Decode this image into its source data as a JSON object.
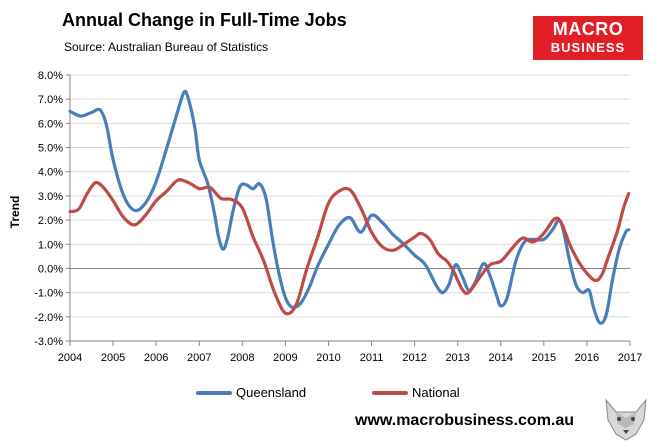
{
  "header": {
    "title": "Annual Change in Full-Time Jobs",
    "source": "Source: Australian Bureau of Statistics"
  },
  "logo": {
    "line1": "MACRO",
    "line2": "BUSINESS"
  },
  "footer": {
    "url": "www.macrobusiness.com.au"
  },
  "colors": {
    "queensland": "#4a7ebb",
    "national": "#be4b48",
    "brand": "#e21f26"
  },
  "chart_data": {
    "type": "line",
    "title": "Annual Change in Full-Time Jobs",
    "xlabel": "",
    "ylabel": "Trend",
    "xlim": [
      2004,
      2017
    ],
    "ylim": [
      -3.0,
      8.0
    ],
    "x_ticks": [
      2004,
      2005,
      2006,
      2007,
      2008,
      2009,
      2010,
      2011,
      2012,
      2013,
      2014,
      2015,
      2016,
      2017
    ],
    "x_tick_labels": [
      "2004",
      "2005",
      "2006",
      "2007",
      "2008",
      "2009",
      "2010",
      "2011",
      "2012",
      "2013",
      "2014",
      "2015",
      "2016",
      "2017"
    ],
    "y_ticks": [
      8.0,
      7.0,
      6.0,
      5.0,
      4.0,
      3.0,
      2.0,
      1.0,
      0.0,
      -1.0,
      -2.0,
      -3.0
    ],
    "y_tick_labels": [
      "8.0%",
      "7.0%",
      "6.0%",
      "5.0%",
      "4.0%",
      "3.0%",
      "2.0%",
      "1.0%",
      "0.0%",
      "-1.0%",
      "-2.0%",
      "-3.0%"
    ],
    "grid": "horizontal",
    "legend_position": "bottom",
    "series": [
      {
        "name": "Queensland",
        "color": "#4a7ebb",
        "points": [
          [
            2004.0,
            6.5
          ],
          [
            2004.25,
            6.3
          ],
          [
            2004.5,
            6.45
          ],
          [
            2004.7,
            6.55
          ],
          [
            2004.85,
            5.9
          ],
          [
            2005.0,
            4.5
          ],
          [
            2005.25,
            3.0
          ],
          [
            2005.5,
            2.4
          ],
          [
            2005.75,
            2.7
          ],
          [
            2006.0,
            3.6
          ],
          [
            2006.25,
            5.0
          ],
          [
            2006.5,
            6.5
          ],
          [
            2006.65,
            7.3
          ],
          [
            2006.75,
            7.0
          ],
          [
            2006.9,
            5.8
          ],
          [
            2007.0,
            4.5
          ],
          [
            2007.2,
            3.5
          ],
          [
            2007.35,
            2.3
          ],
          [
            2007.45,
            1.3
          ],
          [
            2007.55,
            0.8
          ],
          [
            2007.65,
            1.2
          ],
          [
            2007.8,
            2.5
          ],
          [
            2007.95,
            3.4
          ],
          [
            2008.1,
            3.45
          ],
          [
            2008.25,
            3.3
          ],
          [
            2008.4,
            3.5
          ],
          [
            2008.55,
            2.9
          ],
          [
            2008.7,
            1.2
          ],
          [
            2008.85,
            -0.2
          ],
          [
            2009.0,
            -1.2
          ],
          [
            2009.15,
            -1.6
          ],
          [
            2009.35,
            -1.45
          ],
          [
            2009.55,
            -0.8
          ],
          [
            2009.75,
            0.1
          ],
          [
            2010.0,
            1.0
          ],
          [
            2010.25,
            1.8
          ],
          [
            2010.5,
            2.1
          ],
          [
            2010.75,
            1.5
          ],
          [
            2011.0,
            2.2
          ],
          [
            2011.25,
            1.9
          ],
          [
            2011.5,
            1.4
          ],
          [
            2011.75,
            1.0
          ],
          [
            2012.0,
            0.55
          ],
          [
            2012.25,
            0.15
          ],
          [
            2012.5,
            -0.7
          ],
          [
            2012.65,
            -1.0
          ],
          [
            2012.8,
            -0.65
          ],
          [
            2012.95,
            0.15
          ],
          [
            2013.1,
            -0.3
          ],
          [
            2013.25,
            -0.9
          ],
          [
            2013.4,
            -0.6
          ],
          [
            2013.6,
            0.2
          ],
          [
            2013.75,
            -0.3
          ],
          [
            2013.9,
            -1.1
          ],
          [
            2014.0,
            -1.55
          ],
          [
            2014.15,
            -1.2
          ],
          [
            2014.35,
            0.3
          ],
          [
            2014.55,
            1.1
          ],
          [
            2014.75,
            1.2
          ],
          [
            2015.0,
            1.2
          ],
          [
            2015.2,
            1.6
          ],
          [
            2015.35,
            2.0
          ],
          [
            2015.45,
            1.6
          ],
          [
            2015.6,
            0.3
          ],
          [
            2015.75,
            -0.7
          ],
          [
            2015.9,
            -1.0
          ],
          [
            2016.05,
            -0.9
          ],
          [
            2016.15,
            -1.6
          ],
          [
            2016.3,
            -2.25
          ],
          [
            2016.45,
            -1.9
          ],
          [
            2016.6,
            -0.4
          ],
          [
            2016.75,
            0.8
          ],
          [
            2016.9,
            1.5
          ],
          [
            2016.97,
            1.6
          ]
        ]
      },
      {
        "name": "National",
        "color": "#be4b48",
        "points": [
          [
            2004.0,
            2.35
          ],
          [
            2004.2,
            2.45
          ],
          [
            2004.4,
            3.1
          ],
          [
            2004.6,
            3.55
          ],
          [
            2004.8,
            3.3
          ],
          [
            2005.0,
            2.8
          ],
          [
            2005.25,
            2.1
          ],
          [
            2005.5,
            1.8
          ],
          [
            2005.75,
            2.2
          ],
          [
            2006.0,
            2.8
          ],
          [
            2006.25,
            3.2
          ],
          [
            2006.5,
            3.65
          ],
          [
            2006.75,
            3.55
          ],
          [
            2007.0,
            3.3
          ],
          [
            2007.25,
            3.35
          ],
          [
            2007.5,
            2.9
          ],
          [
            2007.75,
            2.85
          ],
          [
            2008.0,
            2.5
          ],
          [
            2008.25,
            1.3
          ],
          [
            2008.5,
            0.3
          ],
          [
            2008.75,
            -1.0
          ],
          [
            2009.0,
            -1.85
          ],
          [
            2009.25,
            -1.5
          ],
          [
            2009.5,
            0.0
          ],
          [
            2009.75,
            1.3
          ],
          [
            2010.0,
            2.7
          ],
          [
            2010.25,
            3.2
          ],
          [
            2010.5,
            3.25
          ],
          [
            2010.75,
            2.5
          ],
          [
            2011.0,
            1.5
          ],
          [
            2011.25,
            0.9
          ],
          [
            2011.5,
            0.75
          ],
          [
            2011.75,
            1.0
          ],
          [
            2012.0,
            1.3
          ],
          [
            2012.15,
            1.45
          ],
          [
            2012.35,
            1.2
          ],
          [
            2012.55,
            0.6
          ],
          [
            2012.75,
            0.3
          ],
          [
            2012.9,
            -0.1
          ],
          [
            2013.1,
            -0.85
          ],
          [
            2013.25,
            -1.0
          ],
          [
            2013.5,
            -0.4
          ],
          [
            2013.75,
            0.15
          ],
          [
            2014.0,
            0.3
          ],
          [
            2014.25,
            0.8
          ],
          [
            2014.5,
            1.25
          ],
          [
            2014.75,
            1.1
          ],
          [
            2015.0,
            1.45
          ],
          [
            2015.25,
            2.05
          ],
          [
            2015.4,
            1.9
          ],
          [
            2015.6,
            1.0
          ],
          [
            2015.8,
            0.3
          ],
          [
            2016.0,
            -0.2
          ],
          [
            2016.2,
            -0.5
          ],
          [
            2016.35,
            -0.25
          ],
          [
            2016.5,
            0.5
          ],
          [
            2016.7,
            1.5
          ],
          [
            2016.85,
            2.5
          ],
          [
            2016.97,
            3.1
          ]
        ]
      }
    ]
  }
}
